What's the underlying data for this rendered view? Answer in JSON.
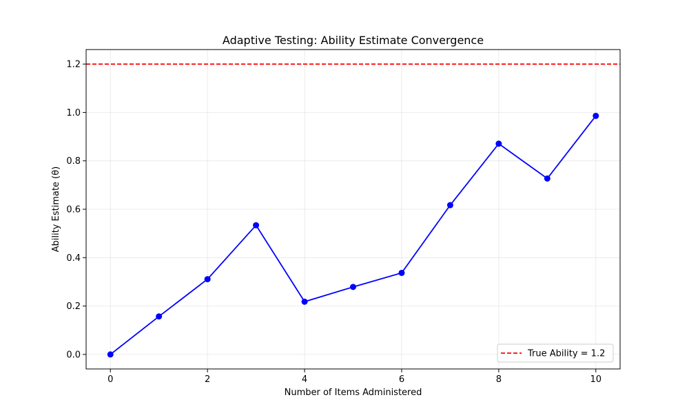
{
  "chart_data": {
    "type": "line",
    "title": "Adaptive Testing: Ability Estimate Convergence",
    "xlabel": "Number of Items Administered",
    "ylabel": "Ability Estimate (θ)",
    "xlim": [
      -0.5,
      10.5
    ],
    "ylim": [
      -0.06,
      1.26
    ],
    "xticks": [
      0,
      2,
      4,
      6,
      8,
      10
    ],
    "xtick_labels": [
      "0",
      "2",
      "4",
      "6",
      "8",
      "10"
    ],
    "yticks": [
      0.0,
      0.2,
      0.4,
      0.6,
      0.8,
      1.0,
      1.2
    ],
    "ytick_labels": [
      "0.0",
      "0.2",
      "0.4",
      "0.6",
      "0.8",
      "1.0",
      "1.2"
    ],
    "grid": true,
    "legend_position": "bottom-right",
    "series": [
      {
        "x": [
          0,
          1,
          2,
          3,
          4,
          5,
          6,
          7,
          8,
          9,
          10
        ],
        "values": [
          0.0,
          0.157,
          0.311,
          0.534,
          0.218,
          0.279,
          0.337,
          0.617,
          0.871,
          0.727,
          0.986
        ],
        "color": "#0000ff",
        "marker": "circle"
      }
    ],
    "reference_lines": [
      {
        "y": 1.2,
        "name": "True Ability = 1.2",
        "color": "#ff0000",
        "style": "dashed"
      }
    ]
  }
}
